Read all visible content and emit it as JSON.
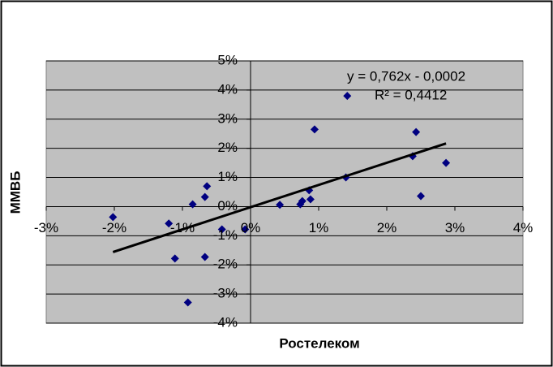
{
  "chart_data": {
    "type": "scatter",
    "x_label": "Ростелеком",
    "y_label": "ММВБ",
    "series": [
      {
        "color": "#000080",
        "x": [
          -2.02,
          -1.2,
          -1.11,
          -0.92,
          -0.85,
          -0.67,
          -0.64,
          -0.67,
          -0.42,
          -0.08,
          0.43,
          0.73,
          0.76,
          0.86,
          0.88,
          0.94,
          1.4,
          2.38,
          2.43,
          2.5,
          2.87,
          1.42
        ],
        "values": [
          -0.36,
          -0.58,
          -1.78,
          -3.29,
          0.08,
          0.33,
          0.7,
          -1.73,
          -0.78,
          -0.78,
          0.06,
          0.08,
          0.19,
          0.56,
          0.25,
          2.65,
          1.0,
          1.73,
          2.56,
          0.36,
          1.5,
          3.8
        ]
      }
    ],
    "trendline": {
      "slope": 0.762,
      "intercept": -0.02,
      "equation": "y = 0,762x - 0,0002",
      "r2": "R² = 0,4412"
    },
    "xlim": [
      -3,
      4
    ],
    "xticks": [
      {
        "value": -3,
        "label": "-3%"
      },
      {
        "value": -2,
        "label": "-2%"
      },
      {
        "value": -1,
        "label": "-1%"
      },
      {
        "value": 0,
        "label": "0%"
      },
      {
        "value": 1,
        "label": "1%"
      },
      {
        "value": 2,
        "label": "2%"
      },
      {
        "value": 3,
        "label": "3%"
      },
      {
        "value": 4,
        "label": "4%"
      }
    ],
    "ylim": [
      -4,
      5
    ],
    "yticks": [
      {
        "value": -4,
        "label": "-4%"
      },
      {
        "value": -3,
        "label": "-3%"
      },
      {
        "value": -2,
        "label": "-2%"
      },
      {
        "value": -1,
        "label": "-1%"
      },
      {
        "value": 0,
        "label": "0%"
      },
      {
        "value": 1,
        "label": "1%"
      },
      {
        "value": 2,
        "label": "2%"
      },
      {
        "value": 3,
        "label": "3%"
      },
      {
        "value": 4,
        "label": "4%"
      },
      {
        "value": 5,
        "label": "5%"
      }
    ],
    "grid": true
  }
}
